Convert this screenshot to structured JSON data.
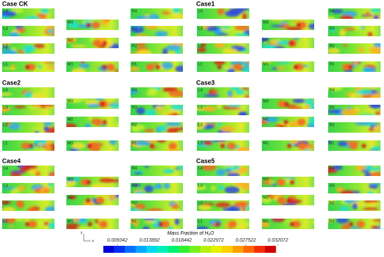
{
  "cases": [
    {
      "title": "Case CK",
      "panels": [
        "L4",
        "L3",
        "L2",
        "L1",
        "M3",
        "M2",
        "M1",
        "R4",
        "R3",
        "R2",
        "R1"
      ]
    },
    {
      "title": "Case1",
      "panels": [
        "L4",
        "L3",
        "L2",
        "L1",
        "M3",
        "M2",
        "M1",
        "R4",
        "R3",
        "R2",
        "R1"
      ]
    },
    {
      "title": "Case2",
      "panels": [
        "L4",
        "L3",
        "L2",
        "L1",
        "M3",
        "M2",
        "M1",
        "R4",
        "R3",
        "R2",
        "R1"
      ]
    },
    {
      "title": "Case3",
      "panels": [
        "L4",
        "L3",
        "L2",
        "L1",
        "M3",
        "M2",
        "M1",
        "R4",
        "R3",
        "R2",
        "R1"
      ]
    },
    {
      "title": "Case4",
      "panels": [
        "L4",
        "L3",
        "L2",
        "L1",
        "M3",
        "M2",
        "M1",
        "R4",
        "R3",
        "R2",
        "R1"
      ]
    },
    {
      "title": "Case5",
      "panels": [
        "L4",
        "L3",
        "L2",
        "L1",
        "M3",
        "M2",
        "M1",
        "R4",
        "R3",
        "R2",
        "R1"
      ]
    }
  ],
  "colorbar": {
    "title": "Mass Fraction of H₂O",
    "ticks": [
      0.009342,
      0.013892,
      0.018442,
      0.022972,
      0.027522,
      0.032072
    ]
  },
  "axes_icon": [
    "y",
    "x"
  ]
}
